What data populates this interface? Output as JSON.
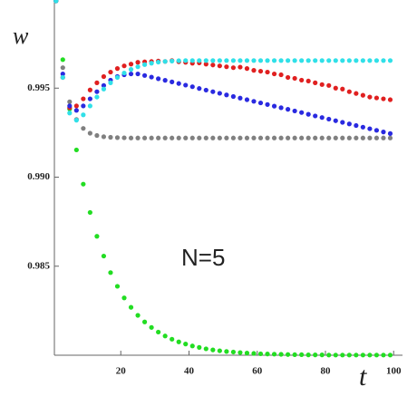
{
  "chart_data": {
    "type": "scatter",
    "x_label": "t",
    "y_label": "w",
    "annotation": "N=5",
    "x": [
      1,
      3,
      5,
      7,
      9,
      11,
      13,
      15,
      17,
      19,
      21,
      23,
      25,
      27,
      29,
      31,
      33,
      35,
      37,
      39,
      41,
      43,
      45,
      47,
      49,
      51,
      53,
      55,
      57,
      59,
      61,
      63,
      65,
      67,
      69,
      71,
      73,
      75,
      77,
      79,
      81,
      83,
      85,
      87,
      89,
      91,
      93,
      95,
      97,
      99
    ],
    "xlim": [
      0,
      101
    ],
    "xticks": [
      20,
      40,
      60,
      80,
      100
    ],
    "ylim": [
      0.98,
      0.99995
    ],
    "yticks": [
      0.985,
      {
        "value": 0.99,
        "label": "0.990"
      },
      0.995
    ],
    "series": [
      {
        "name": "gray",
        "color": "#808080",
        "values": [
          0.9999,
          0.99615,
          0.99423,
          0.99324,
          0.99274,
          0.99247,
          0.99234,
          0.99227,
          0.99224,
          0.99222,
          0.99221,
          0.9922,
          0.9922,
          0.9922,
          0.9922,
          0.9922,
          0.9922,
          0.9922,
          0.9922,
          0.9922,
          0.9922,
          0.9922,
          0.9922,
          0.9922,
          0.9922,
          0.9922,
          0.9922,
          0.9922,
          0.9922,
          0.9922,
          0.9922,
          0.9922,
          0.9922,
          0.9922,
          0.9922,
          0.9922,
          0.9922,
          0.9922,
          0.9922,
          0.9922,
          0.9922,
          0.9922,
          0.9922,
          0.9922,
          0.9922,
          0.9922,
          0.9922,
          0.9922,
          0.9922,
          0.9922
        ]
      },
      {
        "name": "green",
        "color": "#22dd22",
        "values": [
          0.9999,
          0.9966,
          0.99383,
          0.99153,
          0.98961,
          0.98802,
          0.98668,
          0.98557,
          0.98464,
          0.98387,
          0.98322,
          0.98269,
          0.98224,
          0.98187,
          0.98156,
          0.9813,
          0.98108,
          0.9809,
          0.98075,
          0.98063,
          0.98052,
          0.98044,
          0.98036,
          0.9803,
          0.98025,
          0.98021,
          0.98018,
          0.98015,
          0.98012,
          0.9801,
          0.98008,
          0.98007,
          0.98006,
          0.98005,
          0.98004,
          0.98003,
          0.98003,
          0.98002,
          0.98002,
          0.98002,
          0.98001,
          0.98001,
          0.98001,
          0.98001,
          0.98001,
          0.98001,
          0.98001,
          0.98001,
          0.98001,
          0.98001
        ]
      },
      {
        "name": "red",
        "color": "#e02020",
        "values": [
          0.9999,
          0.9956,
          0.9939,
          0.994,
          0.9944,
          0.9949,
          0.9953,
          0.99565,
          0.9959,
          0.9961,
          0.99625,
          0.99635,
          0.99645,
          0.99648,
          0.9965,
          0.99652,
          0.9965,
          0.99655,
          0.99648,
          0.99645,
          0.9964,
          0.99642,
          0.99635,
          0.9963,
          0.99625,
          0.9962,
          0.99615,
          0.99618,
          0.9961,
          0.996,
          0.99595,
          0.9959,
          0.9958,
          0.99575,
          0.9956,
          0.99555,
          0.99545,
          0.9954,
          0.9953,
          0.9952,
          0.99515,
          0.995,
          0.99495,
          0.9948,
          0.9947,
          0.9946,
          0.9945,
          0.99445,
          0.9944,
          0.99435
        ]
      },
      {
        "name": "blue",
        "color": "#2a2ae0",
        "values": [
          0.9999,
          0.9958,
          0.994,
          0.99375,
          0.994,
          0.9944,
          0.9948,
          0.99515,
          0.99545,
          0.99565,
          0.99575,
          0.9958,
          0.9958,
          0.99571,
          0.99562,
          0.99553,
          0.99544,
          0.99535,
          0.99526,
          0.99517,
          0.99508,
          0.99498,
          0.99489,
          0.9948,
          0.99471,
          0.99462,
          0.99453,
          0.99444,
          0.99435,
          0.99426,
          0.99417,
          0.99408,
          0.99399,
          0.9939,
          0.99381,
          0.99372,
          0.99363,
          0.99353,
          0.99344,
          0.99335,
          0.99326,
          0.99317,
          0.99308,
          0.99299,
          0.9929,
          0.99281,
          0.99272,
          0.99263,
          0.99254,
          0.99245
        ]
      },
      {
        "name": "cyan",
        "color": "#30e0e8",
        "values": [
          0.9999,
          0.9956,
          0.9936,
          0.9932,
          0.9935,
          0.994,
          0.9945,
          0.99495,
          0.9953,
          0.9956,
          0.99585,
          0.99605,
          0.9962,
          0.99632,
          0.9964,
          0.99646,
          0.9965,
          0.99652,
          0.99654,
          0.99655,
          0.99655,
          0.99655,
          0.99655,
          0.99655,
          0.99655,
          0.99655,
          0.99655,
          0.99655,
          0.99655,
          0.99655,
          0.99655,
          0.99655,
          0.99655,
          0.99655,
          0.99655,
          0.99655,
          0.99655,
          0.99655,
          0.99655,
          0.99655,
          0.99655,
          0.99655,
          0.99655,
          0.99655,
          0.99655,
          0.99655,
          0.99655,
          0.99655,
          0.99655,
          0.99655
        ]
      }
    ]
  }
}
